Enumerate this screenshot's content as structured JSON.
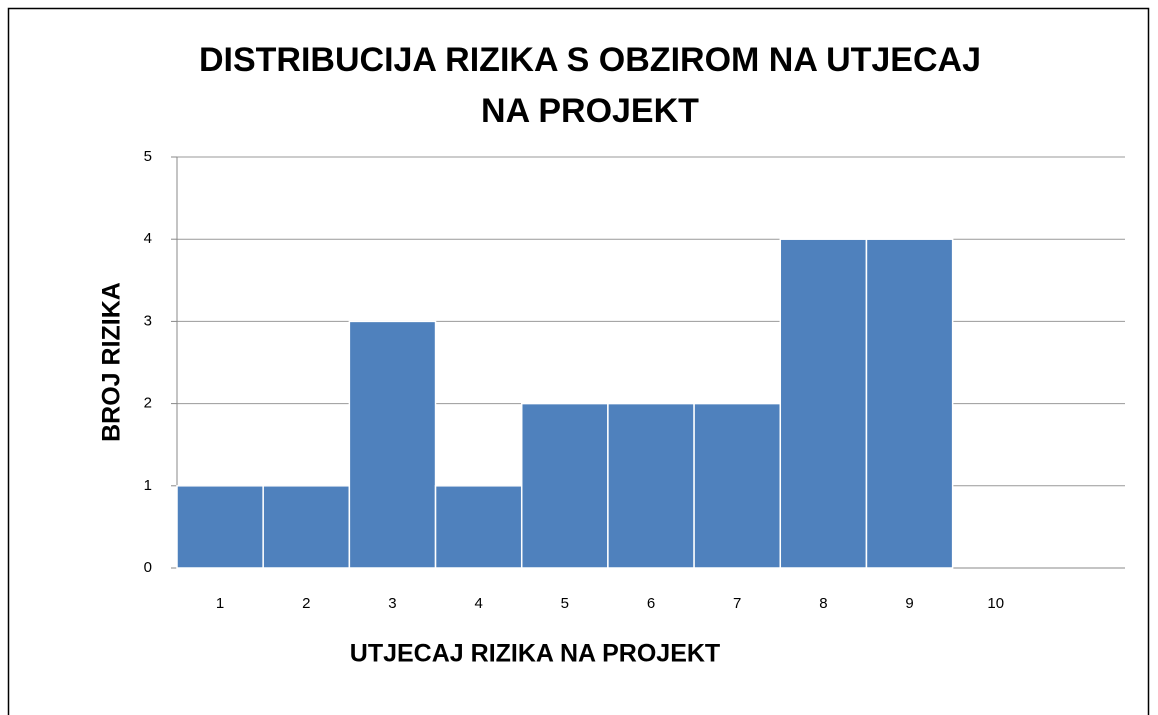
{
  "chart_data": {
    "type": "bar",
    "title": [
      "DISTRIBUCIJA RIZIKA S OBZIROM NA UTJECAJ",
      "NA PROJEKT"
    ],
    "x_label": "UTJECAJ RIZIKA NA PROJEKT",
    "y_label": "BROJ RIZIKA",
    "categories": [
      "1",
      "2",
      "3",
      "4",
      "5",
      "6",
      "7",
      "8",
      "9",
      "10"
    ],
    "values": [
      1,
      1,
      3,
      1,
      2,
      2,
      2,
      4,
      4,
      0
    ],
    "color": "#4f81bd",
    "ylim": [
      0,
      5
    ],
    "yticks": [
      0,
      1,
      2,
      3,
      4,
      5
    ],
    "grid": true
  }
}
